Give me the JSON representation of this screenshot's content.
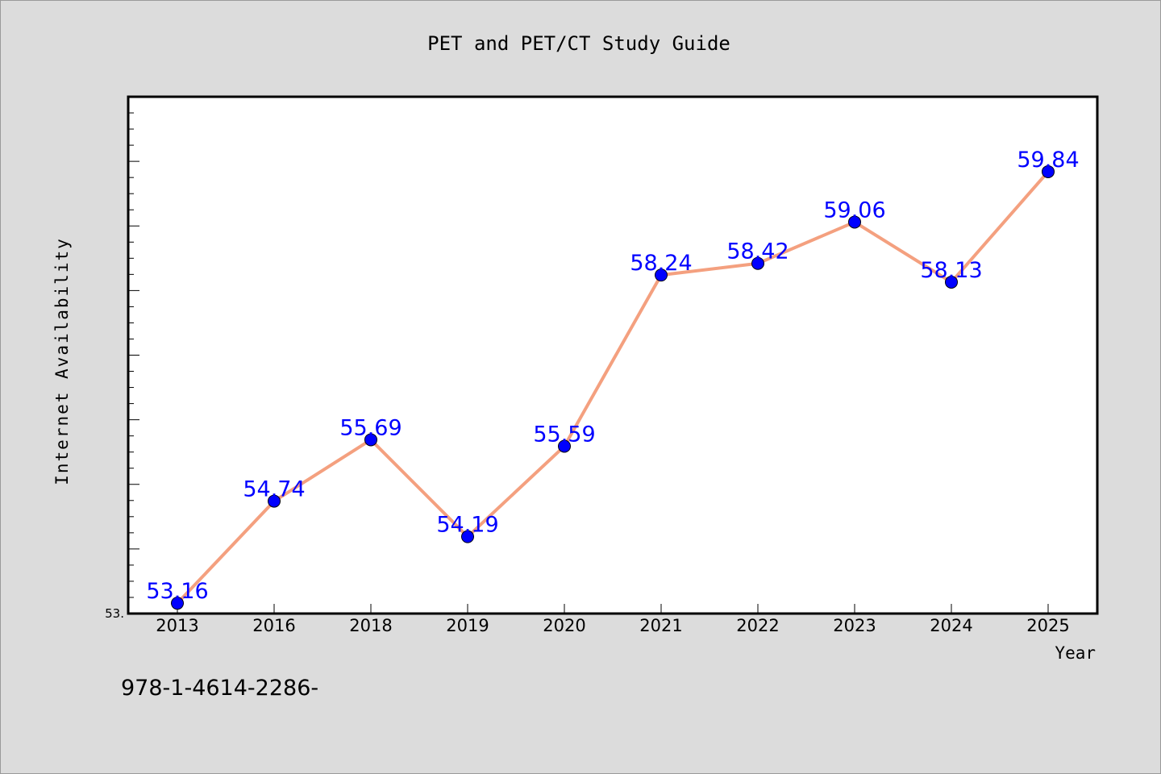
{
  "chart_data": {
    "type": "line",
    "title": "PET and PET/CT Study Guide",
    "xlabel": "Year",
    "ylabel": "Internet Availability",
    "categories": [
      "2013",
      "2016",
      "2018",
      "2019",
      "2020",
      "2021",
      "2022",
      "2023",
      "2024",
      "2025"
    ],
    "series": [
      {
        "values": [
          53.16,
          54.74,
          55.69,
          54.19,
          55.59,
          58.24,
          58.42,
          59.06,
          58.13,
          59.84
        ],
        "labels": [
          "53.16",
          "54.74",
          "55.69",
          "54.19",
          "55.59",
          "58.24",
          "58.42",
          "59.06",
          "58.13",
          "59.84"
        ]
      }
    ],
    "ylim": [
      53.0,
      61.0
    ],
    "y_tick_label": "53.",
    "grid": false,
    "colors": {
      "line": "#f4a07f",
      "marker": "#0000ff",
      "data_label": "#0000ff",
      "plot_bg": "#ffffff",
      "page_bg": "#dcdcdc"
    }
  },
  "footer_text": "978-1-4614-2286-"
}
